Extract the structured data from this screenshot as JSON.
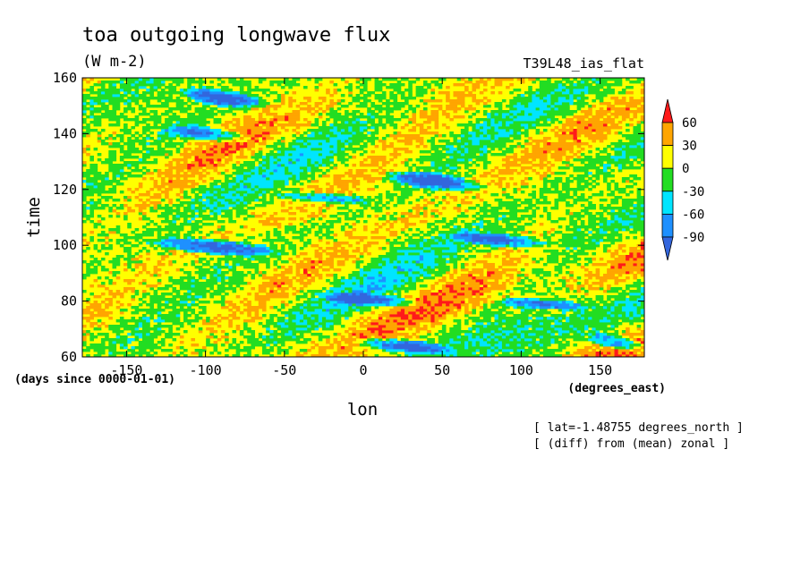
{
  "figure": {
    "title": "toa outgoing longwave flux",
    "units": "(W m-2)",
    "run_label": "T39L48_ias_flat",
    "time_units": "(days since 0000-01-01)",
    "lon_units": "(degrees_east)",
    "info_lines": [
      "[ lat=-1.48755 degrees_north ]",
      "[ (diff) from (mean) zonal ]"
    ]
  },
  "chart_data": {
    "type": "heatmap",
    "title": "toa outgoing longwave flux",
    "subtitle": "(W m-2)",
    "xlabel": "lon",
    "ylabel": "time",
    "xlim": [
      -178,
      178
    ],
    "ylim": [
      60,
      160
    ],
    "x_ticks": [
      -150,
      -100,
      -50,
      0,
      50,
      100,
      150
    ],
    "y_ticks": [
      60,
      80,
      100,
      120,
      140,
      160
    ],
    "levels": [
      -90,
      -60,
      -30,
      0,
      30,
      60
    ],
    "level_colors": [
      "#3366dd",
      "#1e90ff",
      "#00e5ff",
      "#22dd22",
      "#ffff00",
      "#ffa500",
      "#ff1a1a"
    ],
    "bins": [
      {
        "range": "< -90",
        "color": "#3366dd"
      },
      {
        "range": "-90 to -60",
        "color": "#1e90ff"
      },
      {
        "range": "-60 to -30",
        "color": "#00e5ff"
      },
      {
        "range": "-30 to 0",
        "color": "#22dd22"
      },
      {
        "range": "0 to 30",
        "color": "#ffff00"
      },
      {
        "range": "30 to 60",
        "color": "#ffa500"
      },
      {
        "range": "> 60",
        "color": "#ff1a1a"
      }
    ],
    "grid": false,
    "legend": "right",
    "wave_bands": [
      {
        "lon_range": [
          -120,
          -60
        ],
        "time_range": [
          148,
          158
        ],
        "value": -90
      },
      {
        "lon_range": [
          -130,
          -70
        ],
        "time_range": [
          136,
          144
        ],
        "value": -80
      },
      {
        "lon_range": [
          10,
          80
        ],
        "time_range": [
          118,
          128
        ],
        "value": -90
      },
      {
        "lon_range": [
          -60,
          10
        ],
        "time_range": [
          114,
          120
        ],
        "value": -70
      },
      {
        "lon_range": [
          50,
          120
        ],
        "time_range": [
          98,
          106
        ],
        "value": -85
      },
      {
        "lon_range": [
          -140,
          -50
        ],
        "time_range": [
          95,
          104
        ],
        "value": -90
      },
      {
        "lon_range": [
          -30,
          40
        ],
        "time_range": [
          77,
          84
        ],
        "value": -75
      },
      {
        "lon_range": [
          80,
          150
        ],
        "time_range": [
          76,
          82
        ],
        "value": -70
      },
      {
        "lon_range": [
          -10,
          60
        ],
        "time_range": [
          60,
          68
        ],
        "value": -90
      },
      {
        "lon_range": [
          140,
          178
        ],
        "time_range": [
          61,
          70
        ],
        "value": -85
      }
    ]
  }
}
